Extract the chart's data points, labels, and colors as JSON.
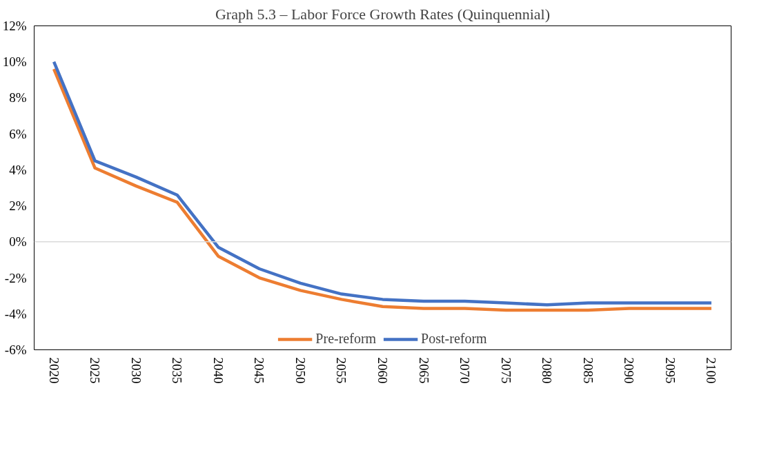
{
  "chart_data": {
    "type": "line",
    "title": "Graph 5.3 – Labor Force Growth Rates (Quinquennial)",
    "categories": [
      "2020",
      "2025",
      "2030",
      "2035",
      "2040",
      "2045",
      "2050",
      "2055",
      "2060",
      "2065",
      "2070",
      "2075",
      "2080",
      "2085",
      "2090",
      "2095",
      "2100"
    ],
    "series": [
      {
        "name": "Pre-reform",
        "color": "#ed7d31",
        "values": [
          9.6,
          4.1,
          3.1,
          2.2,
          -0.8,
          -2.0,
          -2.7,
          -3.2,
          -3.6,
          -3.7,
          -3.7,
          -3.8,
          -3.8,
          -3.8,
          -3.7,
          -3.7,
          -3.7
        ]
      },
      {
        "name": "Post-reform",
        "color": "#4472c4",
        "values": [
          10.0,
          4.5,
          3.6,
          2.6,
          -0.3,
          -1.5,
          -2.3,
          -2.9,
          -3.2,
          -3.3,
          -3.3,
          -3.4,
          -3.5,
          -3.4,
          -3.4,
          -3.4,
          -3.4
        ]
      }
    ],
    "ylim": [
      -6,
      12
    ],
    "yticks": [
      {
        "value": -6,
        "label": "-6%"
      },
      {
        "value": -4,
        "label": "-4%"
      },
      {
        "value": -2,
        "label": "-2%"
      },
      {
        "value": 0,
        "label": "0%"
      },
      {
        "value": 2,
        "label": "2%"
      },
      {
        "value": 4,
        "label": "4%"
      },
      {
        "value": 6,
        "label": "6%"
      },
      {
        "value": 8,
        "label": "8%"
      },
      {
        "value": 10,
        "label": "10%"
      },
      {
        "value": 12,
        "label": "12%"
      }
    ],
    "ref_lines": [
      {
        "axis": "y",
        "value": 0,
        "color": "#d9d9d9"
      }
    ],
    "grid": false,
    "legend": "bottom",
    "marker": "none",
    "line_style": "solid"
  }
}
